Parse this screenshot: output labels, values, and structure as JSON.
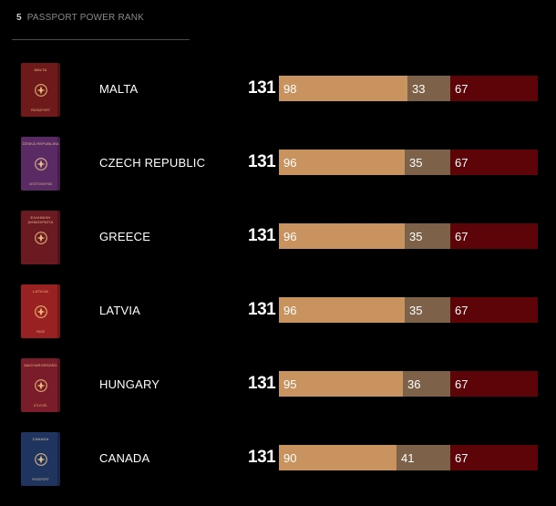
{
  "header": {
    "rank": "5",
    "title": "PASSPORT POWER RANK"
  },
  "colors": {
    "visa_free": "#c8935f",
    "visa_on_arrival": "#7d6249",
    "visa_required": "#5c0407"
  },
  "rows": [
    {
      "country": "MALTA",
      "total": "131",
      "visa_free": "98",
      "visa_on_arrival": "33",
      "visa_required": "67",
      "passport": {
        "color": "#6e1a1a",
        "title": "MALTA",
        "footer": "PASSAPORT",
        "icon": "maltese-cross-icon"
      }
    },
    {
      "country": "CZECH REPUBLIC",
      "total": "131",
      "visa_free": "96",
      "visa_on_arrival": "35",
      "visa_required": "67",
      "passport": {
        "color": "#5a2a64",
        "title": "ČESKÁ REPUBLIKA",
        "footer": "CESTOVNÍ PAS",
        "icon": "lion-crest-icon"
      }
    },
    {
      "country": "GREECE",
      "total": "131",
      "visa_free": "96",
      "visa_on_arrival": "35",
      "visa_required": "67",
      "passport": {
        "color": "#6b1a22",
        "title": "ΕΛΛΗΝΙΚΗ ΔΗΜΟΚΡΑΤΙΑ",
        "footer": "",
        "icon": "cross-shield-icon"
      }
    },
    {
      "country": "LATVIA",
      "total": "131",
      "visa_free": "96",
      "visa_on_arrival": "35",
      "visa_required": "67",
      "passport": {
        "color": "#9a2121",
        "title": "LATVIJA",
        "footer": "PASE",
        "icon": "coat-of-arms-icon"
      }
    },
    {
      "country": "HUNGARY",
      "total": "131",
      "visa_free": "95",
      "visa_on_arrival": "36",
      "visa_required": "67",
      "passport": {
        "color": "#7a1c2a",
        "title": "MAGYARORSZÁG",
        "footer": "ÚTLEVÉL",
        "icon": "crown-shield-icon"
      }
    },
    {
      "country": "CANADA",
      "total": "131",
      "visa_free": "90",
      "visa_on_arrival": "41",
      "visa_required": "67",
      "passport": {
        "color": "#1f3560",
        "title": "CANADA",
        "footer": "PASSPORT",
        "icon": "royal-arms-icon"
      }
    }
  ]
}
